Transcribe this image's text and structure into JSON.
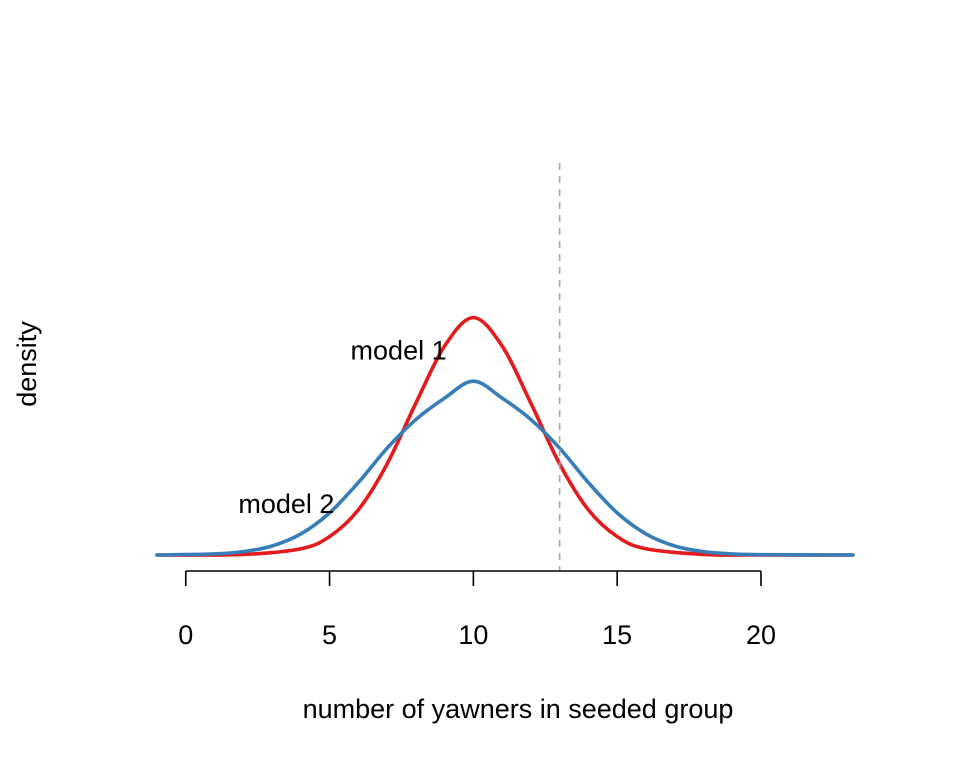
{
  "chart_data": {
    "type": "line",
    "title": "",
    "xlabel": "number of yawners in seeded group",
    "ylabel": "density",
    "xlim": [
      -1,
      23.2
    ],
    "ylim": [
      0,
      0.21
    ],
    "x_ticks": [
      0,
      5,
      10,
      15,
      20
    ],
    "grid": false,
    "legend": "none",
    "reference_line": {
      "x": 13,
      "style": "dashed",
      "color": "#aaaaaa"
    },
    "series": [
      {
        "color": "#e41a1c",
        "x": [
          -1,
          2,
          4,
          5,
          6,
          7,
          8,
          9,
          10,
          11,
          12,
          13,
          14,
          15,
          16,
          18,
          20,
          23.2
        ],
        "y": [
          0.0,
          0.0003,
          0.0033,
          0.0098,
          0.024,
          0.0484,
          0.0807,
          0.1111,
          0.1262,
          0.1111,
          0.0807,
          0.0484,
          0.024,
          0.0098,
          0.0033,
          0.0003,
          0.0,
          0.0
        ]
      },
      {
        "color": "#377eb8",
        "x": [
          -1,
          1,
          2,
          3,
          4,
          5,
          6,
          7,
          8,
          9,
          10,
          11,
          12,
          13,
          14,
          15,
          16,
          17,
          18,
          19,
          20,
          23.2
        ],
        "y": [
          0.0,
          0.0006,
          0.0018,
          0.0048,
          0.0112,
          0.0224,
          0.0385,
          0.0568,
          0.072,
          0.0834,
          0.0924,
          0.0834,
          0.072,
          0.0568,
          0.0385,
          0.0224,
          0.0112,
          0.0048,
          0.0018,
          0.0006,
          0.0002,
          0.0
        ]
      }
    ],
    "annotations": [
      {
        "text": "model 1",
        "x": 7.4,
        "y": 0.1093
      },
      {
        "text": "model 2",
        "x": 3.5,
        "y": 0.0277
      }
    ]
  }
}
